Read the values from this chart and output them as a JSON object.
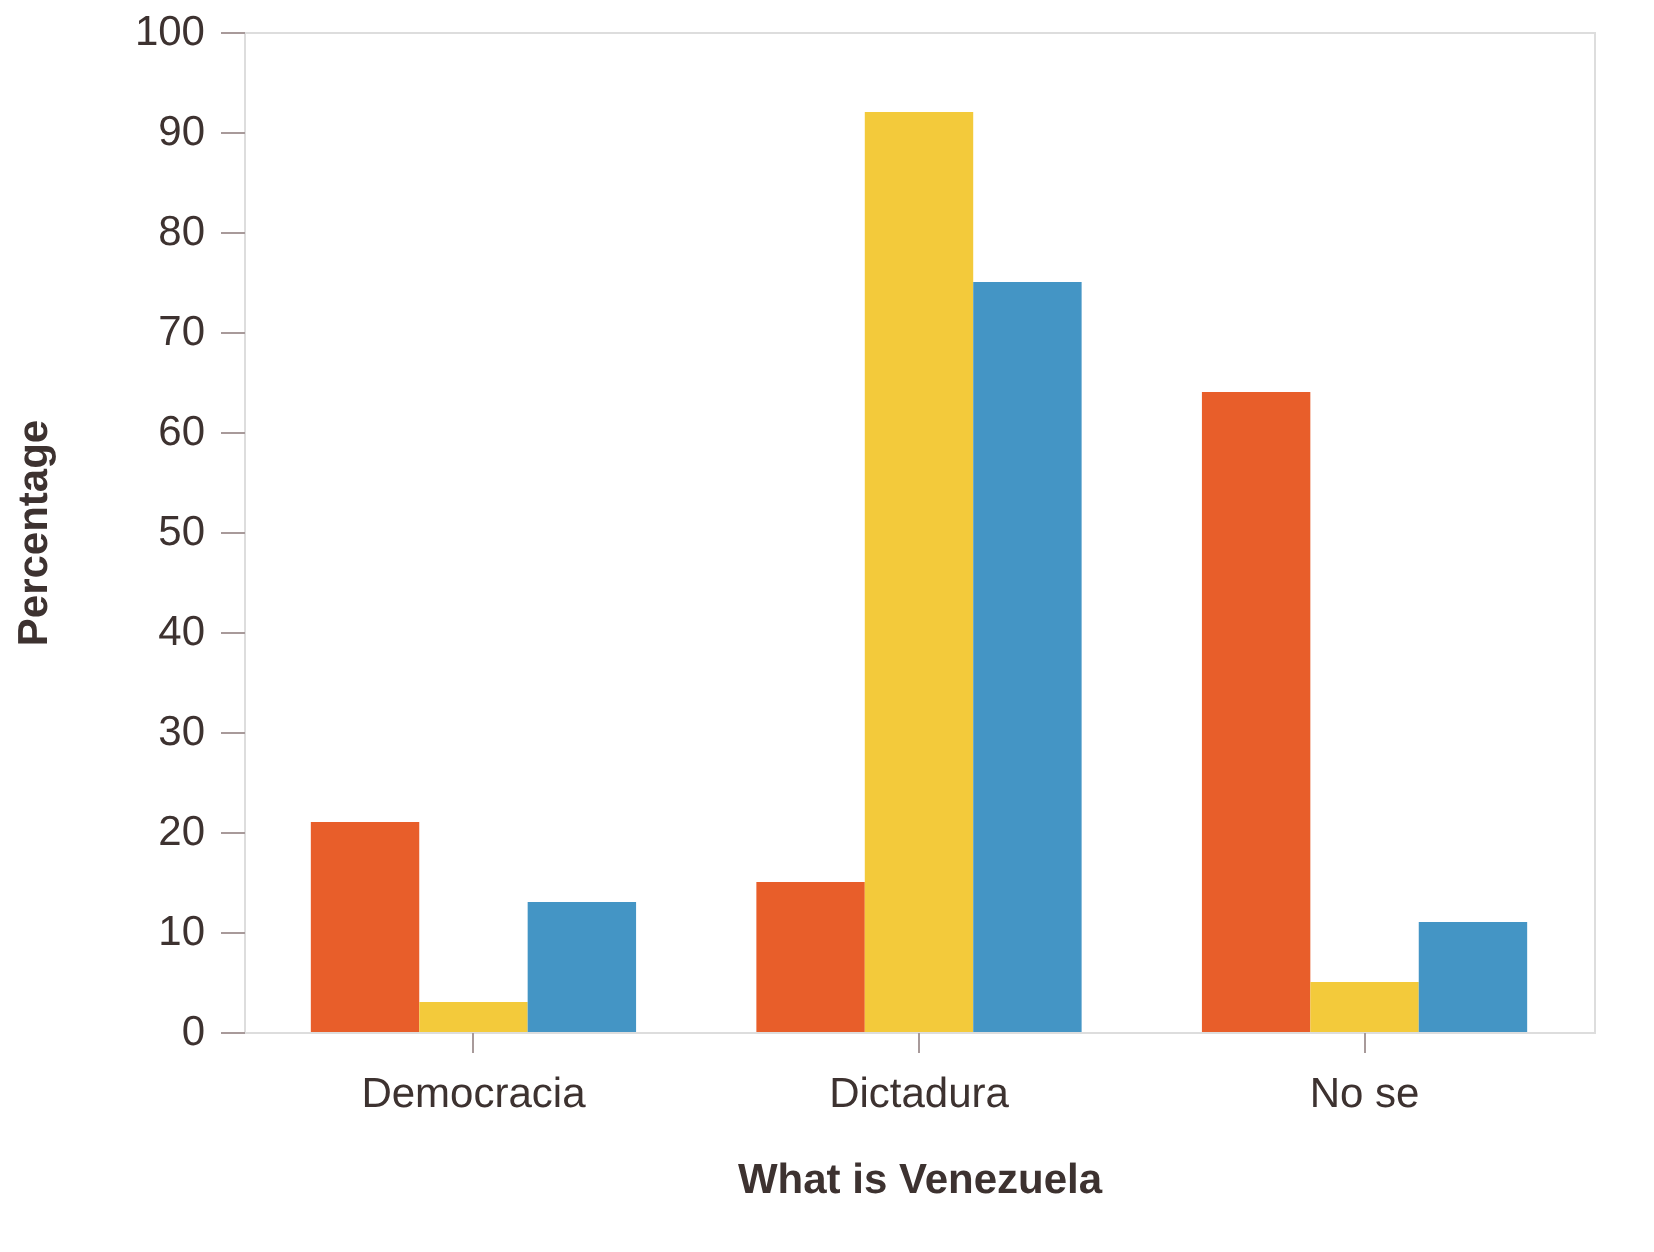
{
  "chart_data": {
    "type": "bar",
    "xlabel": "What is Venezuela",
    "ylabel": "Percentage",
    "categories": [
      "Democracia",
      "Dictadura",
      "No se"
    ],
    "series": [
      {
        "color": "#e85e2a",
        "values": [
          21,
          15,
          64
        ]
      },
      {
        "color": "#f3ca3b",
        "values": [
          3,
          92,
          5
        ]
      },
      {
        "color": "#4495c5",
        "values": [
          13,
          75,
          11
        ]
      }
    ],
    "ylim": [
      0,
      100
    ],
    "yticks": [
      0,
      10,
      20,
      30,
      40,
      50,
      60,
      70,
      80,
      90,
      100
    ],
    "grid": false,
    "legend": false
  }
}
